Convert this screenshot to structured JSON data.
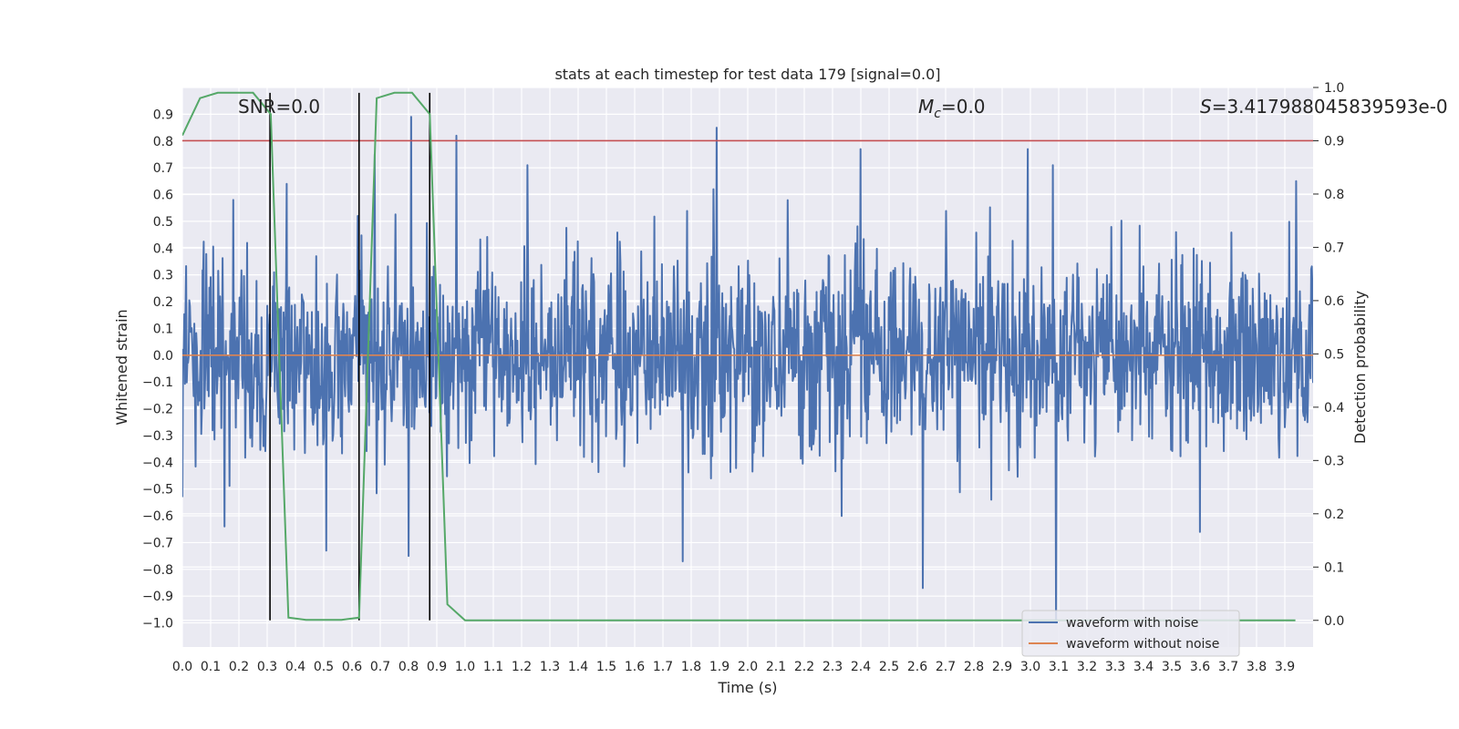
{
  "chart_data": {
    "type": "line",
    "title": "stats at each timestep for test data 179 [signal=0.0]",
    "xlabel": "Time (s)",
    "ylabel": "Whitened strain",
    "y2label": "Detection probability",
    "xlim": [
      0.0,
      4.0
    ],
    "ylim": [
      -1.09,
      1.0
    ],
    "y2lim": [
      -0.05,
      1.0
    ],
    "xticks": [
      "0.0",
      "0.1",
      "0.2",
      "0.3",
      "0.4",
      "0.5",
      "0.6",
      "0.7",
      "0.8",
      "0.9",
      "1.0",
      "1.1",
      "1.2",
      "1.3",
      "1.4",
      "1.5",
      "1.6",
      "1.7",
      "1.8",
      "1.9",
      "2.0",
      "2.1",
      "2.2",
      "2.3",
      "2.4",
      "2.5",
      "2.6",
      "2.7",
      "2.8",
      "2.9",
      "3.0",
      "3.1",
      "3.2",
      "3.3",
      "3.4",
      "3.5",
      "3.6",
      "3.7",
      "3.8",
      "3.9"
    ],
    "yticks": [
      "0.9",
      "0.8",
      "0.7",
      "0.6",
      "0.5",
      "0.4",
      "0.3",
      "0.2",
      "0.1",
      "0.0",
      "−0.1",
      "−0.2",
      "−0.3",
      "−0.4",
      "−0.5",
      "−0.6",
      "−0.7",
      "−0.8",
      "−0.9",
      "−1.0"
    ],
    "y2ticks": [
      "1.0",
      "0.9",
      "0.8",
      "0.7",
      "0.6",
      "0.5",
      "0.4",
      "0.3",
      "0.2",
      "0.1",
      "0.0"
    ],
    "grid": true,
    "legend_position": "lower-right",
    "annotations": {
      "snr_label": "SNR=0.0",
      "mc_symbol": "M",
      "mc_sub": "c",
      "mc_value": "=0.0",
      "s_symbol": "S",
      "s_value": "=3.417988045839593e-0"
    },
    "threshold": {
      "value": 0.9,
      "axis": "y2",
      "color": "#c44e52"
    },
    "vlines": [
      0.31,
      0.625,
      0.875
    ],
    "series": [
      {
        "name": "waveform with noise",
        "color": "#4c72b0",
        "axis": "y",
        "peak_samples": [
          {
            "x": 0.0,
            "y": -0.53
          },
          {
            "x": 0.15,
            "y": -0.64
          },
          {
            "x": 0.18,
            "y": 0.58
          },
          {
            "x": 0.37,
            "y": 0.64
          },
          {
            "x": 0.51,
            "y": -0.73
          },
          {
            "x": 0.62,
            "y": 0.52
          },
          {
            "x": 0.68,
            "y": 0.75
          },
          {
            "x": 0.8,
            "y": -0.75
          },
          {
            "x": 0.81,
            "y": 0.89
          },
          {
            "x": 0.97,
            "y": 0.82
          },
          {
            "x": 1.22,
            "y": 0.71
          },
          {
            "x": 1.77,
            "y": -0.77
          },
          {
            "x": 1.89,
            "y": 0.85
          },
          {
            "x": 2.4,
            "y": 0.77
          },
          {
            "x": 2.62,
            "y": -0.87
          },
          {
            "x": 2.99,
            "y": 0.77
          },
          {
            "x": 3.08,
            "y": 0.71
          },
          {
            "x": 3.09,
            "y": -1.0
          },
          {
            "x": 3.6,
            "y": -0.66
          },
          {
            "x": 3.94,
            "y": 0.65
          }
        ],
        "amplitude_rms": 0.18
      },
      {
        "name": "waveform without noise",
        "color": "#dd8452",
        "axis": "y",
        "x": [
          0.0,
          4.0
        ],
        "y": [
          0.0,
          0.0
        ]
      },
      {
        "name": "",
        "color": "#55a868",
        "axis": "y2",
        "x": [
          0.0,
          0.0625,
          0.125,
          0.1875,
          0.25,
          0.3125,
          0.375,
          0.4375,
          0.5,
          0.5625,
          0.625,
          0.6875,
          0.75,
          0.8125,
          0.875,
          0.9375,
          1.0,
          3.9375
        ],
        "y": [
          0.91,
          0.98,
          0.99,
          0.99,
          0.99,
          0.95,
          0.005,
          0.001,
          0.001,
          0.001,
          0.005,
          0.98,
          0.99,
          0.99,
          0.95,
          0.03,
          0.0,
          0.0
        ]
      }
    ]
  }
}
